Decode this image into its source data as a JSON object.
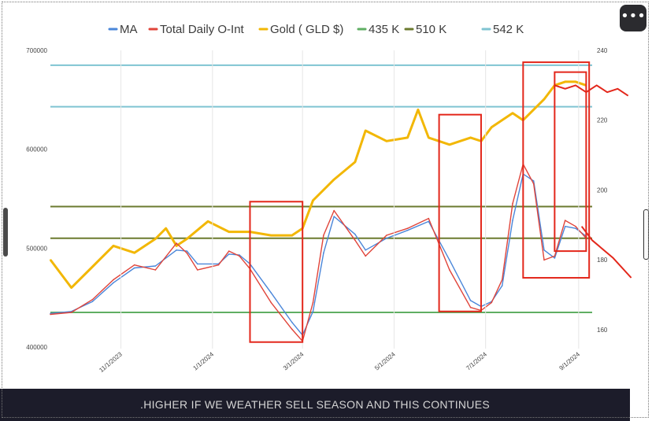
{
  "caption": ".HIGHER IF WE WEATHER SELL SEASON AND THIS CONTINUES",
  "menu": {
    "icon": "more-horizontal-icon",
    "label": "•••"
  },
  "legend": [
    {
      "label": "MA",
      "color": "#4a86d9"
    },
    {
      "label": "Total Daily O-Int",
      "color": "#e0443a"
    },
    {
      "label": "Gold ( GLD $)",
      "color": "#f2b705"
    },
    {
      "label": "435 K",
      "color": "#5fae63"
    },
    {
      "label": "510 K",
      "color": "#6b7a2f"
    },
    {
      "label": "542 K",
      "color": "#7fc4d2"
    }
  ],
  "chart_data": {
    "type": "line",
    "x_ticks": [
      "11/1/2023",
      "1/1/2024",
      "3/1/2024",
      "5/1/2024",
      "7/1/2024",
      "9/1/2024"
    ],
    "x_range": [
      "2023-09-15",
      "2024-09-10"
    ],
    "y_left": {
      "ticks": [
        "400000",
        "500000",
        "600000",
        "700000"
      ],
      "range": [
        400000,
        700000
      ]
    },
    "y_right": {
      "ticks": [
        "160",
        "180",
        "200",
        "220",
        "240"
      ],
      "range": [
        155,
        240
      ]
    },
    "grid": false,
    "legend_position": "top",
    "reference_lines": [
      {
        "name": "435 K",
        "value": 435000,
        "color": "#5fae63"
      },
      {
        "name": "510 K",
        "value": 510000,
        "color": "#6b7a2f"
      },
      {
        "name": "542 K",
        "value": 542000,
        "color": "#6b7a2f"
      },
      {
        "value": 643000,
        "color": "#7fc4d2"
      },
      {
        "value": 685000,
        "color": "#7fc4d2"
      }
    ],
    "series": [
      {
        "name": "Total Daily O-Int",
        "axis": "left",
        "color": "#e0443a",
        "points": [
          [
            "2023-09-15",
            433000
          ],
          [
            "2023-09-29",
            435000
          ],
          [
            "2023-10-13",
            448000
          ],
          [
            "2023-10-27",
            468000
          ],
          [
            "2023-11-10",
            483000
          ],
          [
            "2023-11-24",
            478000
          ],
          [
            "2023-12-08",
            505000
          ],
          [
            "2023-12-15",
            495000
          ],
          [
            "2023-12-22",
            478000
          ],
          [
            "2024-01-05",
            483000
          ],
          [
            "2024-01-12",
            497000
          ],
          [
            "2024-01-19",
            492000
          ],
          [
            "2024-01-26",
            479000
          ],
          [
            "2024-02-09",
            445000
          ],
          [
            "2024-02-23",
            418000
          ],
          [
            "2024-03-01",
            406000
          ],
          [
            "2024-03-08",
            445000
          ],
          [
            "2024-03-15",
            513000
          ],
          [
            "2024-03-22",
            538000
          ],
          [
            "2024-04-05",
            508000
          ],
          [
            "2024-04-12",
            492000
          ],
          [
            "2024-04-26",
            513000
          ],
          [
            "2024-05-10",
            520000
          ],
          [
            "2024-05-24",
            530000
          ],
          [
            "2024-06-07",
            478000
          ],
          [
            "2024-06-21",
            440000
          ],
          [
            "2024-06-28",
            437000
          ],
          [
            "2024-07-05",
            445000
          ],
          [
            "2024-07-12",
            468000
          ],
          [
            "2024-07-19",
            545000
          ],
          [
            "2024-07-26",
            585000
          ],
          [
            "2024-08-02",
            565000
          ],
          [
            "2024-08-09",
            488000
          ],
          [
            "2024-08-16",
            492000
          ],
          [
            "2024-08-23",
            528000
          ],
          [
            "2024-08-30",
            522000
          ],
          [
            "2024-09-06",
            510000
          ]
        ]
      },
      {
        "name": "MA",
        "axis": "left",
        "color": "#4a86d9",
        "points": [
          [
            "2023-09-15",
            434000
          ],
          [
            "2023-09-29",
            436000
          ],
          [
            "2023-10-13",
            446000
          ],
          [
            "2023-10-27",
            465000
          ],
          [
            "2023-11-10",
            480000
          ],
          [
            "2023-11-24",
            482000
          ],
          [
            "2023-12-08",
            498000
          ],
          [
            "2023-12-15",
            497000
          ],
          [
            "2023-12-22",
            484000
          ],
          [
            "2024-01-05",
            484000
          ],
          [
            "2024-01-12",
            494000
          ],
          [
            "2024-01-19",
            493000
          ],
          [
            "2024-01-26",
            484000
          ],
          [
            "2024-02-09",
            455000
          ],
          [
            "2024-02-23",
            425000
          ],
          [
            "2024-03-01",
            412000
          ],
          [
            "2024-03-08",
            436000
          ],
          [
            "2024-03-15",
            495000
          ],
          [
            "2024-03-22",
            532000
          ],
          [
            "2024-04-05",
            514000
          ],
          [
            "2024-04-12",
            498000
          ],
          [
            "2024-04-26",
            510000
          ],
          [
            "2024-05-10",
            518000
          ],
          [
            "2024-05-24",
            527000
          ],
          [
            "2024-06-07",
            488000
          ],
          [
            "2024-06-21",
            447000
          ],
          [
            "2024-06-28",
            441000
          ],
          [
            "2024-07-05",
            446000
          ],
          [
            "2024-07-12",
            462000
          ],
          [
            "2024-07-19",
            528000
          ],
          [
            "2024-07-26",
            575000
          ],
          [
            "2024-08-02",
            568000
          ],
          [
            "2024-08-09",
            498000
          ],
          [
            "2024-08-16",
            490000
          ],
          [
            "2024-08-23",
            522000
          ],
          [
            "2024-08-30",
            520000
          ],
          [
            "2024-09-06",
            512000
          ]
        ]
      },
      {
        "name": "Gold ( GLD $)",
        "axis": "right",
        "color": "#f2b705",
        "points": [
          [
            "2023-09-15",
            180
          ],
          [
            "2023-09-29",
            172
          ],
          [
            "2023-10-13",
            178
          ],
          [
            "2023-10-27",
            184
          ],
          [
            "2023-11-10",
            182
          ],
          [
            "2023-11-24",
            186
          ],
          [
            "2023-12-01",
            189
          ],
          [
            "2023-12-08",
            184
          ],
          [
            "2023-12-15",
            186
          ],
          [
            "2023-12-29",
            191
          ],
          [
            "2024-01-12",
            188
          ],
          [
            "2024-01-26",
            188
          ],
          [
            "2024-02-09",
            187
          ],
          [
            "2024-02-23",
            187
          ],
          [
            "2024-03-01",
            189
          ],
          [
            "2024-03-08",
            197
          ],
          [
            "2024-03-22",
            203
          ],
          [
            "2024-04-05",
            208
          ],
          [
            "2024-04-12",
            217
          ],
          [
            "2024-04-26",
            214
          ],
          [
            "2024-05-10",
            215
          ],
          [
            "2024-05-17",
            223
          ],
          [
            "2024-05-24",
            215
          ],
          [
            "2024-06-07",
            213
          ],
          [
            "2024-06-21",
            215
          ],
          [
            "2024-06-28",
            214
          ],
          [
            "2024-07-05",
            218
          ],
          [
            "2024-07-19",
            222
          ],
          [
            "2024-07-26",
            220
          ],
          [
            "2024-08-09",
            226
          ],
          [
            "2024-08-16",
            230
          ],
          [
            "2024-08-23",
            231
          ],
          [
            "2024-08-30",
            231
          ],
          [
            "2024-09-06",
            230
          ]
        ]
      }
    ]
  },
  "annotations": {
    "boxes": [
      {
        "from": "2024-01-26",
        "to": "2024-03-01",
        "y_top": 547000,
        "y_bottom": 405000
      },
      {
        "from": "2024-05-31",
        "to": "2024-06-28",
        "y_top": 635000,
        "y_bottom": 436000
      },
      {
        "from": "2024-07-26",
        "to": "2024-09-08",
        "y_top": 688000,
        "y_bottom": 470000
      },
      {
        "from": "2024-08-16",
        "to": "2024-09-06",
        "y_top": 678000,
        "y_bottom": 497000
      }
    ],
    "gold_projection": [
      [
        "2024-08-16",
        230
      ],
      [
        "2024-08-23",
        229
      ],
      [
        "2024-08-30",
        230
      ],
      [
        "2024-09-06",
        228
      ],
      [
        "2024-09-13",
        230
      ],
      [
        "2024-09-20",
        228
      ],
      [
        "2024-09-27",
        229
      ],
      [
        "2024-10-04",
        227
      ]
    ],
    "oi_projection": [
      [
        "2024-09-03",
        522000
      ],
      [
        "2024-09-10",
        508000
      ],
      [
        "2024-09-24",
        490000
      ],
      [
        "2024-10-06",
        470000
      ]
    ]
  }
}
